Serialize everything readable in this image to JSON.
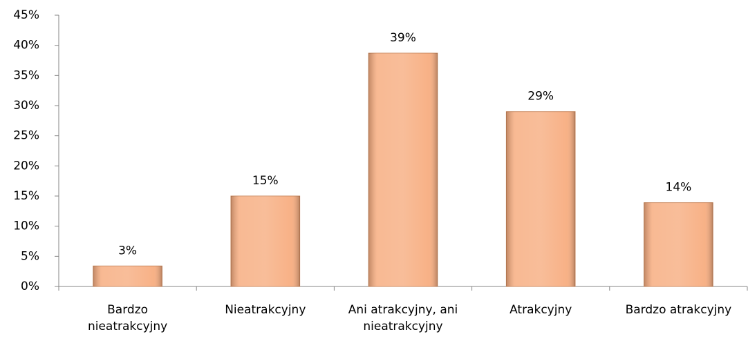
{
  "chart_data": {
    "type": "bar",
    "categories": [
      "Bardzo nieatrakcyjny",
      "Nieatrakcyjny",
      "Ani atrakcyjny, ani nieatrakcyjny",
      "Atrakcyjny",
      "Bardzo atrakcyjny"
    ],
    "values": [
      3.4,
      15,
      38.7,
      29,
      13.9
    ],
    "value_labels": [
      "3%",
      "15%",
      "39%",
      "29%",
      "14%"
    ],
    "color": "#f7ad80",
    "ylim": [
      0,
      45
    ],
    "yticks": [
      {
        "value": 0,
        "label": "0%"
      },
      {
        "value": 5,
        "label": "5%"
      },
      {
        "value": 10,
        "label": "10%"
      },
      {
        "value": 15,
        "label": "15%"
      },
      {
        "value": 20,
        "label": "20%"
      },
      {
        "value": 25,
        "label": "25%"
      },
      {
        "value": 30,
        "label": "30%"
      },
      {
        "value": 35,
        "label": "35%"
      },
      {
        "value": 40,
        "label": "40%"
      },
      {
        "value": 45,
        "label": "45%"
      }
    ],
    "grid": false
  }
}
